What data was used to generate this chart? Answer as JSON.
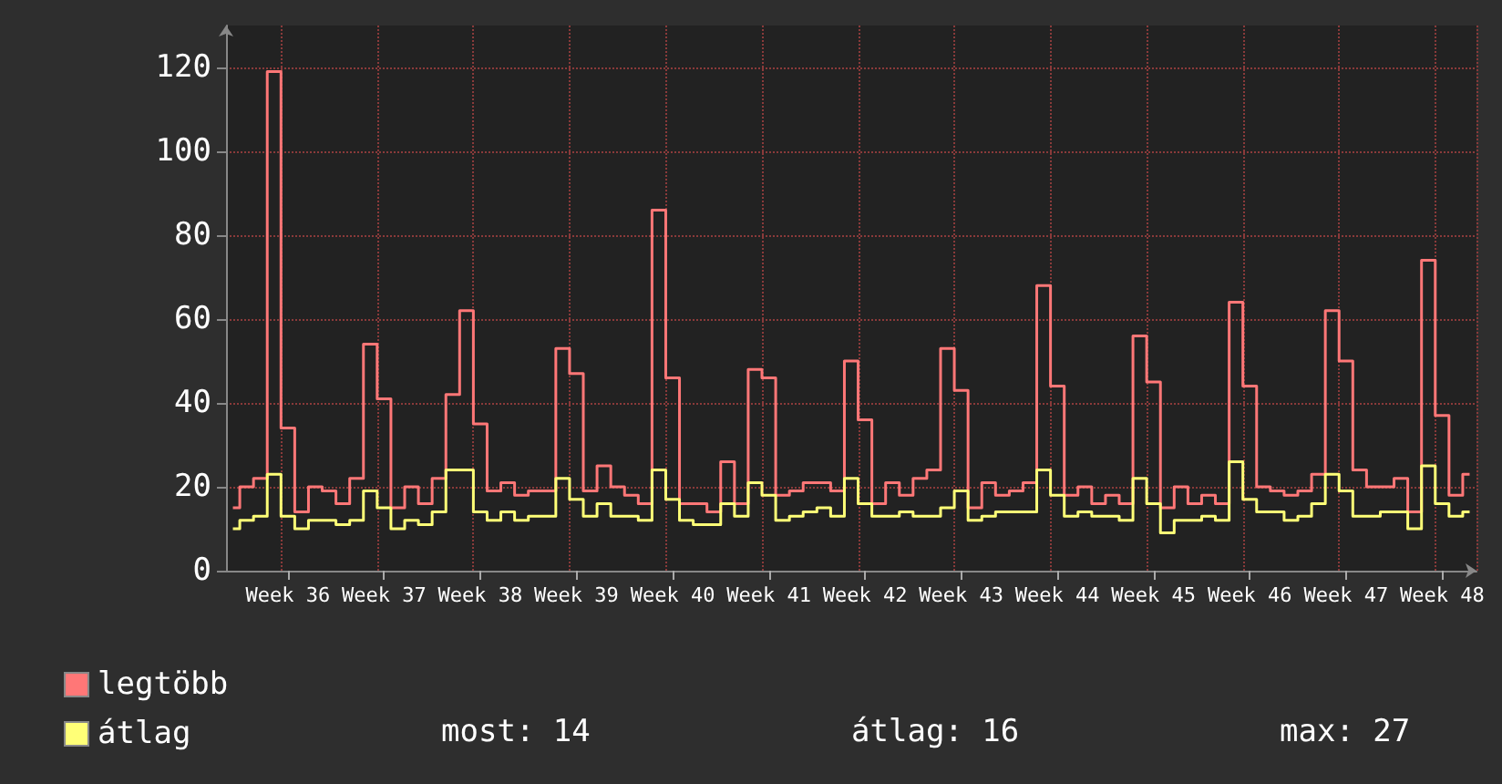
{
  "chart_data": {
    "type": "step",
    "categories": [
      null,
      null,
      null,
      null,
      "Week 36",
      null,
      null,
      null,
      null,
      null,
      null,
      "Week 37",
      null,
      null,
      null,
      null,
      null,
      null,
      "Week 38",
      null,
      null,
      null,
      null,
      null,
      null,
      "Week 39",
      null,
      null,
      null,
      null,
      null,
      null,
      "Week 40",
      null,
      null,
      null,
      null,
      null,
      null,
      "Week 41",
      null,
      null,
      null,
      null,
      null,
      null,
      "Week 42",
      null,
      null,
      null,
      null,
      null,
      null,
      "Week 43",
      null,
      null,
      null,
      null,
      null,
      null,
      "Week 44",
      null,
      null,
      null,
      null,
      null,
      null,
      "Week 45",
      null,
      null,
      null,
      null,
      null,
      null,
      "Week 46",
      null,
      null,
      null,
      null,
      null,
      null,
      "Week 47",
      null,
      null,
      null,
      null,
      null,
      null,
      "Week 48",
      null,
      null
    ],
    "series": [
      {
        "name": "legtöbb",
        "color": "#ff7777",
        "values": [
          15,
          20,
          22,
          119,
          34,
          14,
          20,
          19,
          16,
          22,
          54,
          41,
          15,
          20,
          16,
          22,
          42,
          62,
          35,
          19,
          21,
          18,
          19,
          19,
          53,
          47,
          19,
          25,
          20,
          18,
          16,
          86,
          46,
          16,
          16,
          14,
          26,
          16,
          48,
          46,
          18,
          19,
          21,
          21,
          19,
          50,
          36,
          16,
          21,
          18,
          22,
          24,
          53,
          43,
          15,
          21,
          18,
          19,
          21,
          68,
          44,
          18,
          20,
          16,
          18,
          16,
          56,
          45,
          15,
          20,
          16,
          18,
          16,
          64,
          44,
          20,
          19,
          18,
          19,
          23,
          62,
          50,
          24,
          20,
          20,
          22,
          14,
          74,
          37,
          18,
          23
        ]
      },
      {
        "name": "átlag",
        "color": "#ffff77",
        "values": [
          10,
          12,
          13,
          23,
          13,
          10,
          12,
          12,
          11,
          12,
          19,
          15,
          10,
          12,
          11,
          14,
          24,
          24,
          14,
          12,
          14,
          12,
          13,
          13,
          22,
          17,
          13,
          16,
          13,
          13,
          12,
          24,
          17,
          12,
          11,
          11,
          16,
          13,
          21,
          18,
          12,
          13,
          14,
          15,
          13,
          22,
          16,
          13,
          13,
          14,
          13,
          13,
          15,
          19,
          12,
          13,
          14,
          14,
          14,
          24,
          18,
          13,
          14,
          13,
          13,
          12,
          22,
          16,
          9,
          12,
          12,
          13,
          12,
          26,
          17,
          14,
          14,
          12,
          13,
          16,
          23,
          19,
          13,
          13,
          14,
          14,
          10,
          25,
          16,
          13,
          14
        ]
      }
    ],
    "ylim": [
      0,
      130
    ],
    "yticks": [
      0,
      20,
      40,
      60,
      80,
      100,
      120
    ],
    "grid": true,
    "legend": "bottom left",
    "marker": "none",
    "annotations": [
      "most: 14",
      "átlag: 16",
      "max: 27"
    ]
  }
}
